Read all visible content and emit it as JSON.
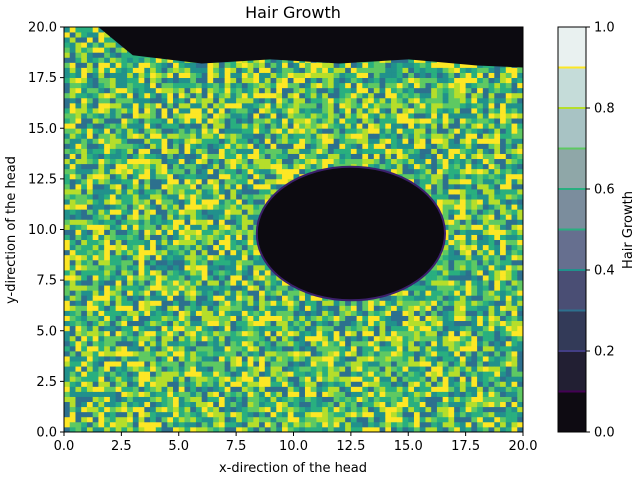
{
  "chart_data": {
    "type": "heatmap",
    "title": "Hair Growth",
    "xlabel": "x-direction of the head",
    "ylabel": "y-direction of the head",
    "xlim": [
      0,
      20
    ],
    "ylim": [
      0,
      20
    ],
    "xticks": [
      "0.0",
      "2.5",
      "5.0",
      "7.5",
      "10.0",
      "12.5",
      "15.0",
      "17.5",
      "20.0"
    ],
    "yticks": [
      "0.0",
      "2.5",
      "5.0",
      "7.5",
      "10.0",
      "12.5",
      "15.0",
      "17.5",
      "20.0"
    ],
    "colorbar": {
      "label": "Hair Growth",
      "range": [
        0,
        1
      ],
      "ticks": [
        "0.0",
        "0.2",
        "0.4",
        "0.6",
        "0.8",
        "1.0"
      ],
      "levels": [
        0.0,
        0.1,
        0.2,
        0.3,
        0.4,
        0.5,
        0.6,
        0.7,
        0.8,
        0.9,
        1.0
      ]
    },
    "bald_region": {
      "center": [
        12.5,
        9.8
      ],
      "radius_x": 4.1,
      "radius_y": 3.3
    },
    "missing_corner": {
      "from_x": 1.5,
      "to_x": 20.0,
      "top_y_at_left": 20.0,
      "top_y_at_right": 18.0
    },
    "colormap": [
      "#0e0b12",
      "#221f33",
      "#333a58",
      "#4a4e74",
      "#666f8f",
      "#7b8d9d",
      "#8fa7a8",
      "#a8c3c4",
      "#c5dcd9",
      "#e9f1f0"
    ],
    "surface_colormap": [
      "#440154",
      "#433e85",
      "#2d708e",
      "#21918c",
      "#29af7f",
      "#5ec962",
      "#b5de2b",
      "#fde725"
    ]
  }
}
